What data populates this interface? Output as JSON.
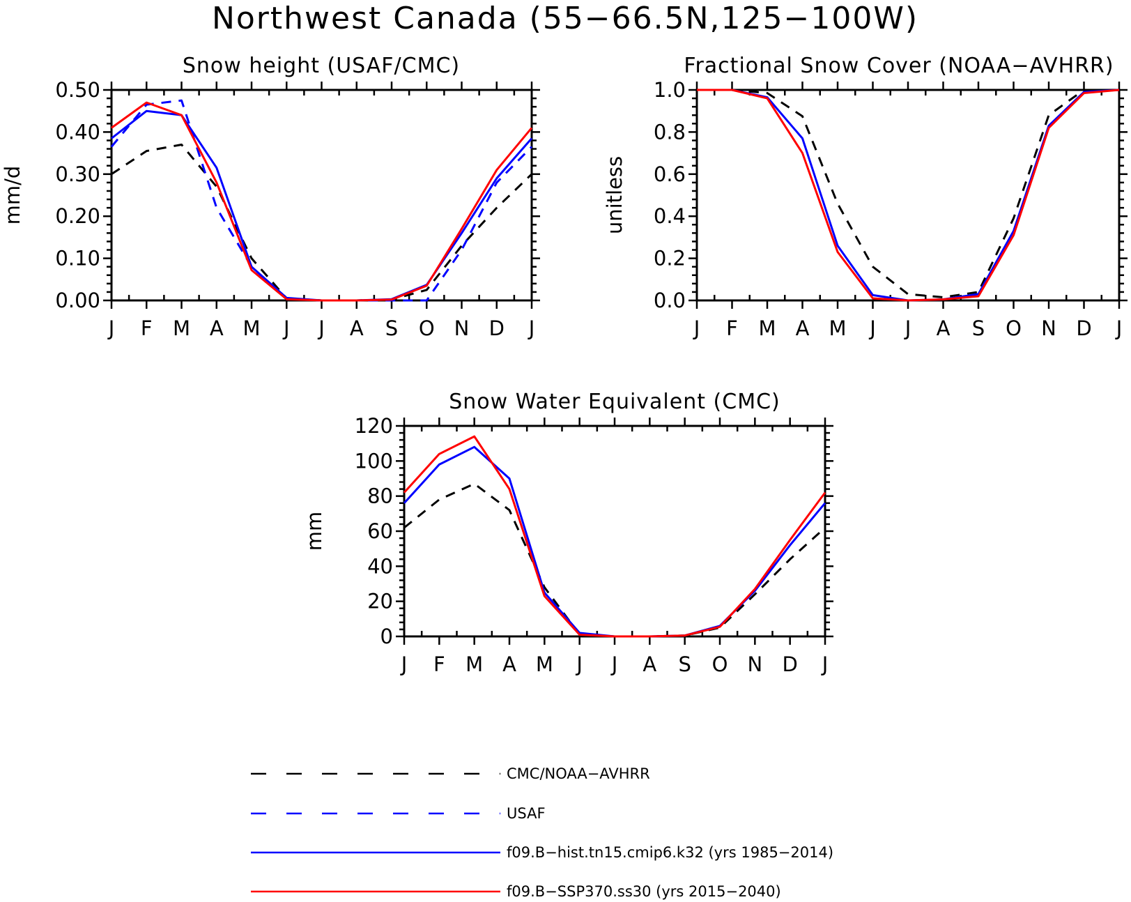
{
  "figure": {
    "title": "Northwest Canada (55−66.5N,125−100W)"
  },
  "styles": {
    "obs": {
      "color": "#000000",
      "dash": "14,11"
    },
    "usaf": {
      "color": "#0000ff",
      "dash": "14,11"
    },
    "hist": {
      "color": "#0000ff",
      "dash": ""
    },
    "ssp": {
      "color": "#ff0000",
      "dash": ""
    }
  },
  "chart_data": [
    {
      "type": "line",
      "title": "Snow height (USAF/CMC)",
      "ylabel": "mm/d",
      "xlabel": "",
      "categories": [
        "J",
        "F",
        "M",
        "A",
        "M",
        "J",
        "J",
        "A",
        "S",
        "O",
        "N",
        "D",
        "J"
      ],
      "ylim": [
        0,
        0.5
      ],
      "yticks": [
        0,
        0.1,
        0.2,
        0.3,
        0.4,
        0.5
      ],
      "ytick_labels": [
        "0.00",
        "0.10",
        "0.20",
        "0.30",
        "0.40",
        "0.50"
      ],
      "series": [
        {
          "key": "obs",
          "values": [
            0.3,
            0.355,
            0.37,
            0.27,
            0.1,
            0.005,
            0.0,
            0.0,
            0.002,
            0.025,
            0.13,
            0.22,
            0.3
          ]
        },
        {
          "key": "usaf",
          "values": [
            0.365,
            0.465,
            0.475,
            0.22,
            0.08,
            0.003,
            0.0,
            0.0,
            0.0,
            0.0,
            0.12,
            0.28,
            0.365
          ]
        },
        {
          "key": "hist",
          "values": [
            0.385,
            0.45,
            0.44,
            0.315,
            0.08,
            0.006,
            0.0,
            0.0,
            0.003,
            0.037,
            0.16,
            0.29,
            0.385
          ]
        },
        {
          "key": "ssp",
          "values": [
            0.41,
            0.47,
            0.44,
            0.28,
            0.072,
            0.003,
            0.0,
            0.0,
            0.002,
            0.035,
            0.17,
            0.31,
            0.41
          ]
        }
      ]
    },
    {
      "type": "line",
      "title": "Fractional Snow Cover (NOAA−AVHRR)",
      "ylabel": "unitless",
      "xlabel": "",
      "categories": [
        "J",
        "F",
        "M",
        "A",
        "M",
        "J",
        "J",
        "A",
        "S",
        "O",
        "N",
        "D",
        "J"
      ],
      "ylim": [
        0,
        1.0
      ],
      "yticks": [
        0,
        0.2,
        0.4,
        0.6,
        0.8,
        1.0
      ],
      "ytick_labels": [
        "0.0",
        "0.2",
        "0.4",
        "0.6",
        "0.8",
        "1.0"
      ],
      "series": [
        {
          "key": "obs",
          "values": [
            1.0,
            1.0,
            0.985,
            0.875,
            0.46,
            0.16,
            0.03,
            0.015,
            0.04,
            0.39,
            0.88,
            1.0,
            1.0
          ]
        },
        {
          "key": "hist",
          "values": [
            1.0,
            1.0,
            0.965,
            0.77,
            0.26,
            0.025,
            0.0,
            0.005,
            0.03,
            0.33,
            0.83,
            0.99,
            1.0
          ]
        },
        {
          "key": "ssp",
          "values": [
            1.0,
            1.0,
            0.96,
            0.7,
            0.23,
            0.01,
            0.0,
            0.005,
            0.02,
            0.31,
            0.82,
            0.985,
            1.0
          ]
        }
      ]
    },
    {
      "type": "line",
      "title": "Snow Water Equivalent (CMC)",
      "ylabel": "mm",
      "xlabel": "",
      "categories": [
        "J",
        "F",
        "M",
        "A",
        "M",
        "J",
        "J",
        "A",
        "S",
        "O",
        "N",
        "D",
        "J"
      ],
      "ylim": [
        0,
        120
      ],
      "yticks": [
        0,
        20,
        40,
        60,
        80,
        100,
        120
      ],
      "ytick_labels": [
        "0",
        "20",
        "40",
        "60",
        "80",
        "100",
        "120"
      ],
      "series": [
        {
          "key": "obs",
          "values": [
            62,
            78,
            87,
            72,
            28,
            1,
            0,
            0,
            0.5,
            5,
            24,
            44,
            62
          ]
        },
        {
          "key": "hist",
          "values": [
            76,
            98,
            108,
            90,
            25,
            2,
            0,
            0,
            0.5,
            6,
            26,
            52,
            76
          ]
        },
        {
          "key": "ssp",
          "values": [
            82,
            104,
            114,
            84,
            23,
            1,
            0,
            0,
            0.5,
            5.5,
            27,
            55,
            82
          ]
        }
      ]
    }
  ],
  "legend": [
    {
      "key": "obs",
      "label": "CMC/NOAA−AVHRR"
    },
    {
      "key": "usaf",
      "label": "USAF"
    },
    {
      "key": "hist",
      "label": "f09.B−hist.tn15.cmip6.k32 (yrs 1985−2014)"
    },
    {
      "key": "ssp",
      "label": "f09.B−SSP370.ss30 (yrs 2015−2040)"
    }
  ]
}
